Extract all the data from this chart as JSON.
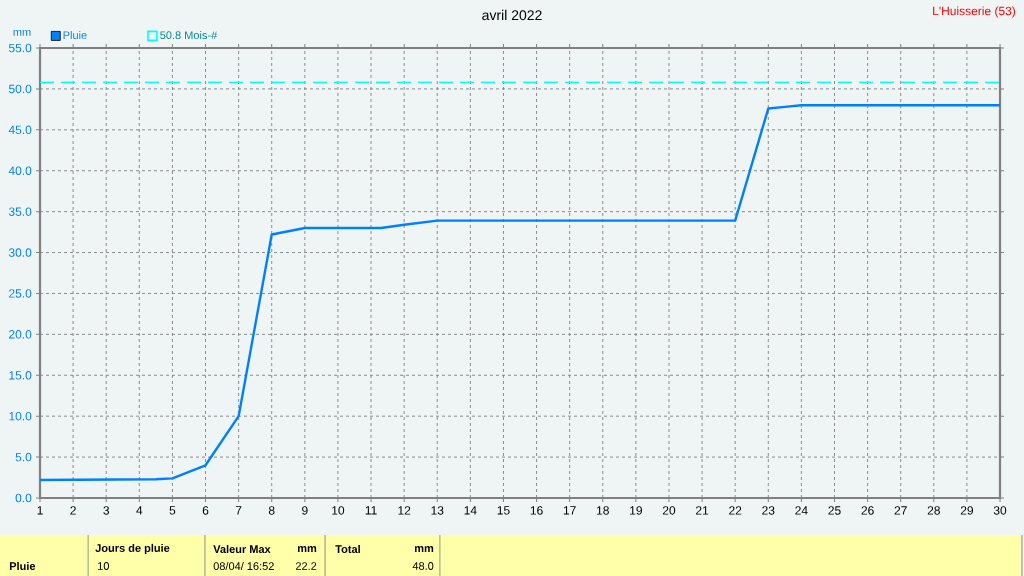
{
  "chart_data": {
    "type": "line",
    "title": "avril 2022",
    "ylabel": "mm",
    "annotations": [
      "L'Huisserie (53)",
      "Pluie",
      "Jours de pluie",
      "10",
      "Valeur Max",
      "mm",
      "08/04/ 16:52",
      "22.2",
      "Total",
      "mm",
      "48.0"
    ],
    "xlim": [
      1,
      30
    ],
    "ylim": [
      0,
      55
    ],
    "xticks": [
      1,
      2,
      3,
      4,
      5,
      6,
      7,
      8,
      9,
      10,
      11,
      12,
      13,
      14,
      15,
      16,
      17,
      18,
      19,
      20,
      21,
      22,
      23,
      24,
      25,
      26,
      27,
      28,
      29,
      30
    ],
    "yticks": [
      {
        "value": 0,
        "label": "0.0"
      },
      {
        "value": 5,
        "label": "5.0"
      },
      {
        "value": 10,
        "label": "10.0"
      },
      {
        "value": 15,
        "label": "15.0"
      },
      {
        "value": 20,
        "label": "20.0"
      },
      {
        "value": 25,
        "label": "25.0"
      },
      {
        "value": 30,
        "label": "30.0"
      },
      {
        "value": 35,
        "label": "35.0"
      },
      {
        "value": 40,
        "label": "40.0"
      },
      {
        "value": 45,
        "label": "45.0"
      },
      {
        "value": 50,
        "label": "50.0"
      },
      {
        "value": 55,
        "label": "55.0"
      }
    ],
    "grid": true,
    "legend": "top left",
    "marker": "none",
    "line_style": "solid",
    "ref_lines": [
      {
        "axis": "y",
        "value": 50.8,
        "label": "50.8 Mois-#",
        "color": "#00ffff",
        "line_style": "dashed"
      }
    ],
    "series": [
      {
        "name": "Pluie",
        "color": "#0080ff",
        "x": [
          1,
          4.5,
          5,
          6,
          7,
          8,
          8.5,
          9,
          11.3,
          12,
          13,
          22,
          23,
          23.5,
          24,
          30
        ],
        "values": [
          2.2,
          2.3,
          2.4,
          4.0,
          10.0,
          32.2,
          32.6,
          33.0,
          33.0,
          33.4,
          33.9,
          33.9,
          47.6,
          47.8,
          48.0,
          48.0
        ]
      }
    ]
  }
}
